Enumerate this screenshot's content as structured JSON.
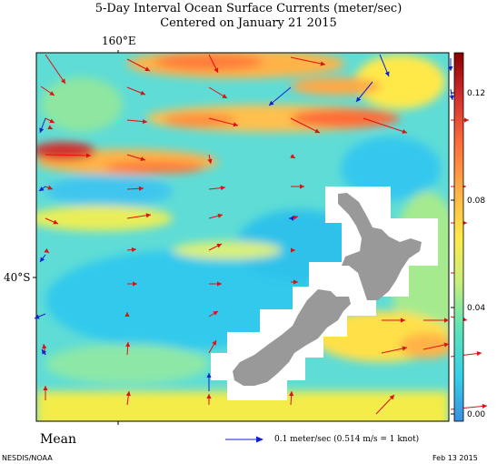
{
  "title_line1": "5-Day Interval Ocean Surface Currents (meter/sec)",
  "title_line2": "Centered on January 21 2015",
  "lon_label": "160°E",
  "lat_label": "40°S",
  "mean_label": "Mean",
  "legend_text": "0.1 meter/sec  (0.514 m/s = 1 knot)",
  "credit": "NESDIS/NOAA",
  "date_stamp": "Feb 13 2015",
  "colorbar": {
    "ticks": [
      "0.12",
      "0.08",
      "0.04",
      "0.00"
    ],
    "colors": [
      "#b71c1c",
      "#e53935",
      "#ff7043",
      "#ffb74d",
      "#ffeb3b",
      "#d9f07a",
      "#8ee6a0",
      "#4fe3d0",
      "#29c7ee",
      "#3da3e6"
    ]
  },
  "colors": {
    "land": "#999999",
    "field_base": "#5fdcd6",
    "arrow_red": "#e01010",
    "arrow_blue": "#1020d0"
  }
}
